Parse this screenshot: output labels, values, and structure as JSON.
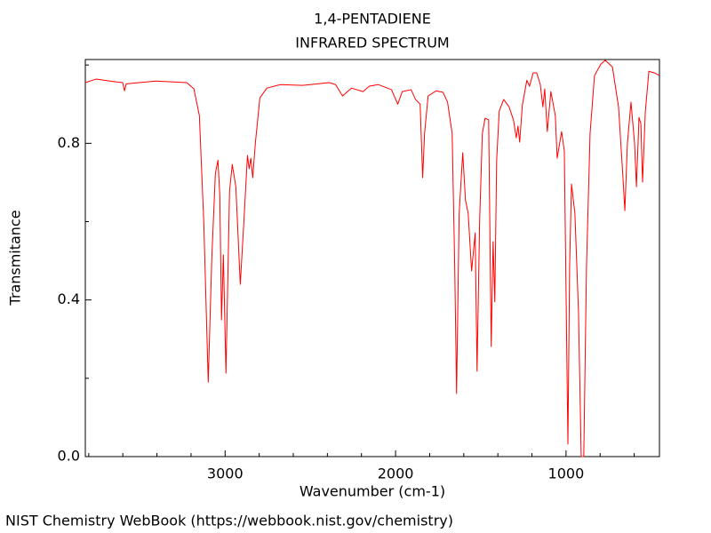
{
  "chart_data": {
    "type": "line",
    "title": "1,4-PENTADIENE",
    "subtitle": "INFRARED SPECTRUM",
    "x_label": "Wavenumber (cm-1)",
    "y_label": "Transmitance",
    "source": "NIST Chemistry WebBook (https://webbook.nist.gov/chemistry)",
    "color": "#ff0000",
    "xlim": [
      3820,
      452
    ],
    "ylim": [
      0,
      1.014
    ],
    "xticks": [
      3000,
      2000,
      1000
    ],
    "xminorticks": [
      3800,
      3600,
      3400,
      3200,
      2800,
      2600,
      2400,
      2200,
      1800,
      1600,
      1400,
      1200,
      800,
      600
    ],
    "yticks": [
      {
        "value": 0,
        "label": "0.0"
      },
      0.4,
      0.8
    ],
    "yminorticks": [
      0.2,
      0.6,
      1.0
    ],
    "x": [
      3820,
      3757,
      3642,
      3601,
      3590,
      3580,
      3407,
      3225,
      3183,
      3151,
      3125,
      3099,
      3078,
      3057,
      3042,
      3031,
      3021,
      3010,
      2995,
      2974,
      2958,
      2937,
      2911,
      2890,
      2869,
      2859,
      2849,
      2838,
      2822,
      2796,
      2755,
      2676,
      2546,
      2389,
      2352,
      2311,
      2258,
      2191,
      2154,
      2102,
      2024,
      1987,
      1961,
      1909,
      1883,
      1856,
      1841,
      1830,
      1809,
      1762,
      1721,
      1695,
      1668,
      1653,
      1642,
      1627,
      1606,
      1590,
      1574,
      1554,
      1533,
      1522,
      1507,
      1491,
      1475,
      1454,
      1439,
      1428,
      1418,
      1407,
      1392,
      1366,
      1334,
      1308,
      1292,
      1282,
      1272,
      1256,
      1230,
      1214,
      1193,
      1172,
      1151,
      1136,
      1125,
      1110,
      1089,
      1063,
      1052,
      1026,
      1010,
      989,
      979,
      968,
      948,
      927,
      911,
      896,
      880,
      859,
      833,
      796,
      770,
      728,
      692,
      666,
      655,
      640,
      619,
      598,
      587,
      572,
      561,
      551,
      535,
      514,
      483,
      452
    ],
    "values": [
      0.955,
      0.964,
      0.957,
      0.955,
      0.934,
      0.952,
      0.959,
      0.955,
      0.939,
      0.871,
      0.599,
      0.19,
      0.508,
      0.723,
      0.757,
      0.667,
      0.349,
      0.515,
      0.213,
      0.678,
      0.746,
      0.689,
      0.44,
      0.599,
      0.769,
      0.735,
      0.762,
      0.712,
      0.803,
      0.916,
      0.941,
      0.95,
      0.948,
      0.955,
      0.95,
      0.921,
      0.941,
      0.932,
      0.946,
      0.95,
      0.937,
      0.9,
      0.932,
      0.937,
      0.912,
      0.9,
      0.712,
      0.825,
      0.921,
      0.934,
      0.93,
      0.905,
      0.825,
      0.485,
      0.161,
      0.621,
      0.776,
      0.655,
      0.621,
      0.474,
      0.571,
      0.218,
      0.599,
      0.825,
      0.864,
      0.86,
      0.281,
      0.549,
      0.395,
      0.757,
      0.882,
      0.912,
      0.893,
      0.859,
      0.814,
      0.844,
      0.803,
      0.898,
      0.961,
      0.946,
      0.98,
      0.98,
      0.95,
      0.893,
      0.939,
      0.83,
      0.932,
      0.871,
      0.762,
      0.83,
      0.78,
      0.032,
      0.485,
      0.696,
      0.621,
      0.372,
      0,
      0,
      0.485,
      0.825,
      0.973,
      1.002,
      1.012,
      0.995,
      0.893,
      0.712,
      0.628,
      0.8,
      0.905,
      0.8,
      0.689,
      0.866,
      0.85,
      0.701,
      0.88,
      0.984,
      0.98,
      0.973
    ]
  }
}
